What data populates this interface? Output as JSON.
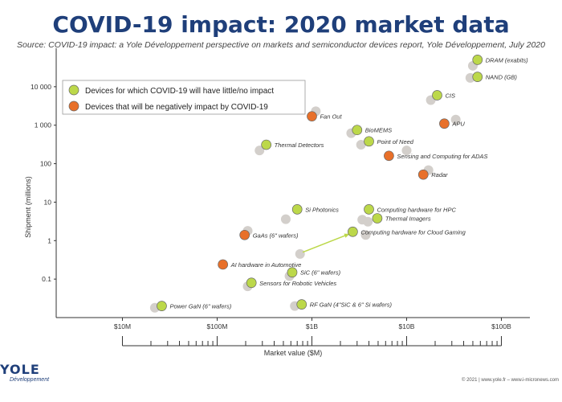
{
  "title": "COVID-19 impact: 2020 market data",
  "source": "Source: COVID-19 impact: a Yole Développement perspective on markets and semiconductor devices report, Yole Développement, July 2020",
  "footer": "© 2021 | www.yole.fr – www.i-micronews.com",
  "logo": {
    "main": "YOLE",
    "sub": "Développement"
  },
  "colors": {
    "green": "#bcd84a",
    "orange": "#e8702a",
    "grey": "#d3cfcb",
    "title": "#1f3f7a"
  },
  "chart_data": {
    "type": "scatter",
    "xlabel": "Market value ($M)",
    "ylabel": "Shipment (millions)",
    "x_scale": "log",
    "y_scale": "log",
    "xlim": [
      2,
      200000
    ],
    "ylim": [
      0.01,
      100000
    ],
    "x_ticks": [
      {
        "value": 10,
        "label": "$10M"
      },
      {
        "value": 100,
        "label": "$100M"
      },
      {
        "value": 1000,
        "label": "$1B"
      },
      {
        "value": 10000,
        "label": "$10B"
      },
      {
        "value": 100000,
        "label": "$100B"
      }
    ],
    "y_ticks": [
      {
        "value": 0.1,
        "label": "0.1"
      },
      {
        "value": 1,
        "label": "1"
      },
      {
        "value": 10,
        "label": "10"
      },
      {
        "value": 100,
        "label": "100"
      },
      {
        "value": 1000,
        "label": "1 000"
      },
      {
        "value": 10000,
        "label": "10 000"
      }
    ],
    "legend": {
      "position": "top-left",
      "items": [
        {
          "category": "little",
          "label": "Devices for which COVID-19 will have little/no impact"
        },
        {
          "category": "negative",
          "label": "Devices that will be negatively impact by COVID-19"
        }
      ]
    },
    "points": [
      {
        "label": "DRAM (exabits)",
        "category": "little",
        "x": 56000,
        "y": 50000,
        "prev": {
          "x": 50000,
          "y": 35000
        }
      },
      {
        "label": "NAND (GB)",
        "category": "little",
        "x": 56000,
        "y": 18000,
        "prev": {
          "x": 47000,
          "y": 17000
        }
      },
      {
        "label": "CIS",
        "category": "little",
        "x": 21000,
        "y": 6000,
        "prev": {
          "x": 18000,
          "y": 4500
        }
      },
      {
        "label": "APU",
        "category": "negative",
        "x": 25000,
        "y": 1100,
        "prev": {
          "x": 33000,
          "y": 1400
        }
      },
      {
        "label": "Fan Out",
        "category": "negative",
        "x": 1000,
        "y": 1700,
        "prev": {
          "x": 1100,
          "y": 2300
        }
      },
      {
        "label": "BioMEMS",
        "category": "little",
        "x": 3000,
        "y": 750,
        "prev": {
          "x": 2600,
          "y": 620
        }
      },
      {
        "label": "Point of Need",
        "category": "little",
        "x": 4000,
        "y": 380,
        "prev": {
          "x": 3300,
          "y": 310
        }
      },
      {
        "label": "Thermal Detectors",
        "category": "little",
        "x": 330,
        "y": 310,
        "prev": {
          "x": 280,
          "y": 220
        }
      },
      {
        "label": "Sensing and Computing for ADAS",
        "category": "negative",
        "x": 6500,
        "y": 160,
        "prev": {
          "x": 10000,
          "y": 220
        }
      },
      {
        "label": "Radar",
        "category": "negative",
        "x": 15000,
        "y": 52,
        "prev": {
          "x": 17000,
          "y": 68
        }
      },
      {
        "label": "Si Photonics",
        "category": "little",
        "x": 700,
        "y": 6.5,
        "prev": {
          "x": 530,
          "y": 3.6
        }
      },
      {
        "label": "Computing hardware for HPC",
        "category": "little",
        "x": 4000,
        "y": 6.5,
        "prev": {
          "x": 3400,
          "y": 3.5
        }
      },
      {
        "label": "Thermal Imagers",
        "category": "little",
        "x": 4900,
        "y": 3.8,
        "prev": {
          "x": 3900,
          "y": 3.1
        }
      },
      {
        "label": "GaAs (6\" wafers)",
        "category": "negative",
        "x": 195,
        "y": 1.4,
        "prev": {
          "x": 210,
          "y": 1.8
        }
      },
      {
        "label": "Computing hardware for Cloud Gaming",
        "category": "little",
        "x": 2700,
        "y": 1.7,
        "prev": {
          "x": 3700,
          "y": 1.4
        }
      },
      {
        "label": "AI hardware in Automotive",
        "category": "negative",
        "x": 115,
        "y": 0.24,
        "prev": null
      },
      {
        "label": "SiC (6\" wafers)",
        "category": "little",
        "x": 620,
        "y": 0.15,
        "prev": {
          "x": 580,
          "y": 0.12
        }
      },
      {
        "label": "Sensors for Robotic Vehicles",
        "category": "little",
        "x": 230,
        "y": 0.08,
        "prev": {
          "x": 210,
          "y": 0.065
        }
      },
      {
        "label": "Power GaN (6\" wafers)",
        "category": "little",
        "x": 26,
        "y": 0.02,
        "prev": {
          "x": 22,
          "y": 0.018
        }
      },
      {
        "label": "RF GaN (4\"SiC & 6\" Si wafers)",
        "category": "little",
        "x": 780,
        "y": 0.022,
        "prev": {
          "x": 660,
          "y": 0.02
        }
      }
    ],
    "extra_grey": [
      {
        "x": 750,
        "y": 0.45
      }
    ],
    "arrow": {
      "from": {
        "x": 800,
        "y": 0.5
      },
      "to": {
        "x": 2500,
        "y": 1.5
      }
    }
  }
}
